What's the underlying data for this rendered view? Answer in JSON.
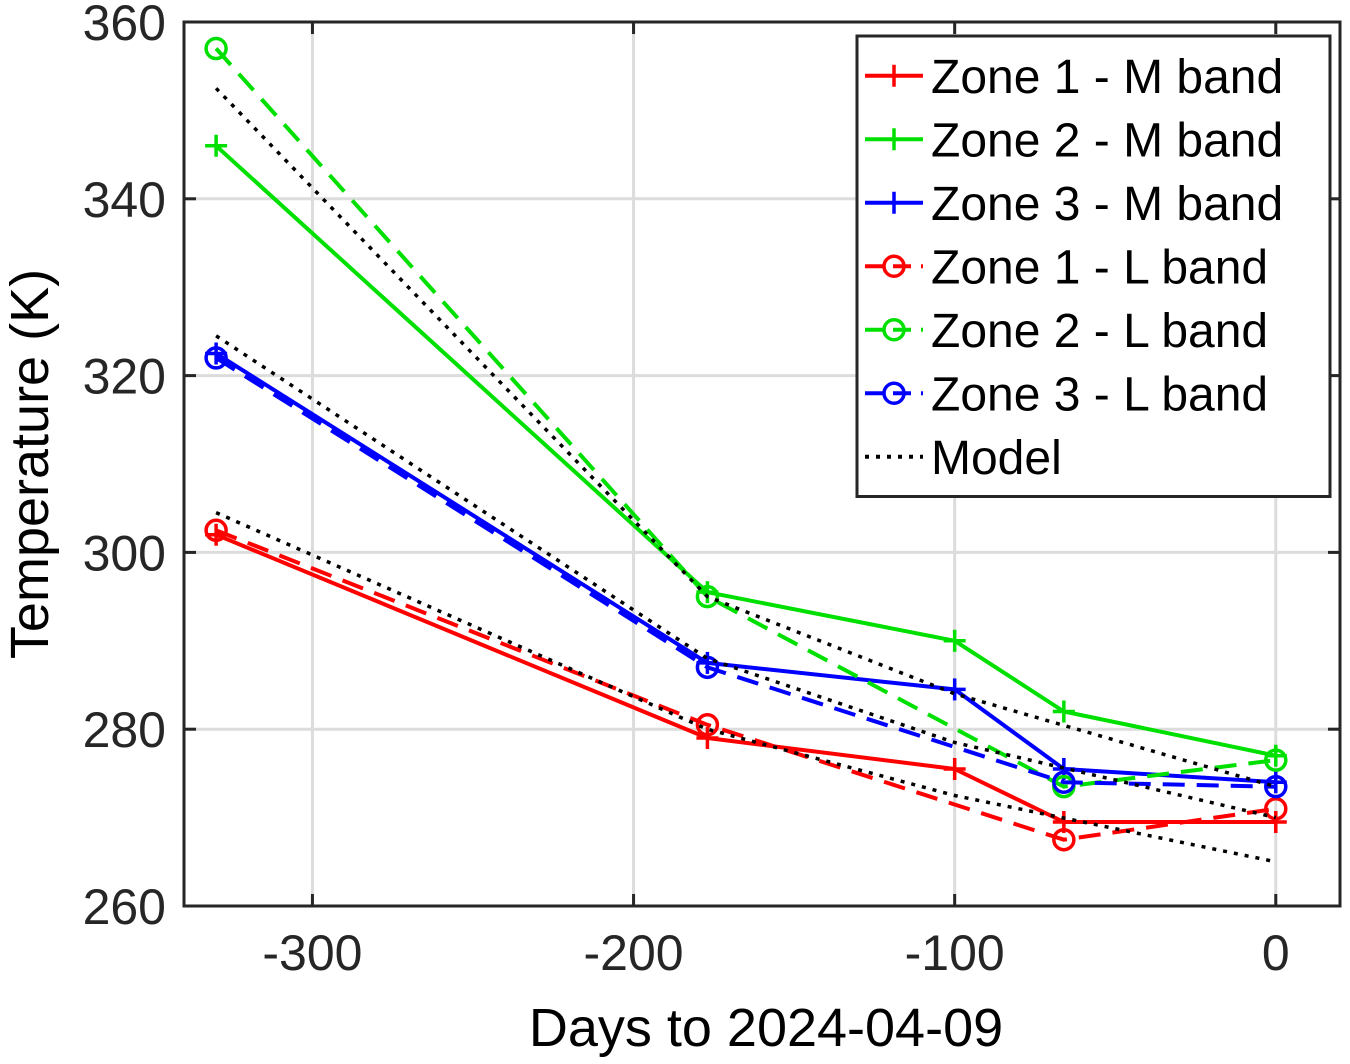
{
  "chart_data": {
    "type": "line",
    "title": "",
    "xlabel": "Days to 2024-04-09",
    "ylabel": "Temperature (K)",
    "xlim": [
      -340,
      20
    ],
    "ylim": [
      260,
      360
    ],
    "xticks": [
      -300,
      -200,
      -100,
      0
    ],
    "xtick_labels": [
      "-300",
      "-200",
      "-100",
      "0"
    ],
    "yticks": [
      260,
      280,
      300,
      320,
      340,
      360
    ],
    "ytick_labels": [
      "260",
      "280",
      "300",
      "320",
      "340",
      "360"
    ],
    "grid": true,
    "legend_position": "top-right",
    "series": [
      {
        "name": "Zone 1 - M band",
        "color": "#ff0000",
        "line": "solid",
        "marker": "plus",
        "x": [
          -330,
          -177,
          -100,
          -66,
          0
        ],
        "y": [
          302,
          279,
          275.5,
          269.5,
          269.5
        ]
      },
      {
        "name": "Zone 2 - M band",
        "color": "#00e000",
        "line": "solid",
        "marker": "plus",
        "x": [
          -330,
          -177,
          -100,
          -66,
          0
        ],
        "y": [
          346,
          295.5,
          290,
          282,
          277
        ]
      },
      {
        "name": "Zone 3 - M band",
        "color": "#0000ff",
        "line": "solid",
        "marker": "plus",
        "x": [
          -330,
          -177,
          -100,
          -66,
          0
        ],
        "y": [
          322.5,
          287.5,
          284.5,
          275.5,
          274
        ]
      },
      {
        "name": "Zone 1 - L band",
        "color": "#ff0000",
        "line": "dashed",
        "marker": "circle",
        "x": [
          -330,
          -177,
          -66,
          0
        ],
        "y": [
          302.5,
          280.5,
          267.5,
          271
        ]
      },
      {
        "name": "Zone 2 - L band",
        "color": "#00e000",
        "line": "dashed",
        "marker": "circle",
        "x": [
          -330,
          -177,
          -66,
          0
        ],
        "y": [
          357,
          295,
          273.5,
          276.5
        ]
      },
      {
        "name": "Zone 3 - L band",
        "color": "#0000ff",
        "line": "dashed",
        "marker": "circle",
        "x": [
          -330,
          -177,
          -66,
          0
        ],
        "y": [
          322,
          287,
          274,
          273.5
        ]
      },
      {
        "name": "Model",
        "color": "#000000",
        "line": "dotted",
        "marker": "none",
        "legend": true,
        "x": [
          -330,
          -177,
          -100,
          0
        ],
        "y": [
          304.5,
          280,
          272.5,
          265
        ]
      },
      {
        "name": "Model",
        "color": "#000000",
        "line": "dotted",
        "marker": "none",
        "legend": false,
        "x": [
          -330,
          -177,
          -100,
          0
        ],
        "y": [
          324.5,
          288,
          278.5,
          270
        ]
      },
      {
        "name": "Model",
        "color": "#000000",
        "line": "dotted",
        "marker": "none",
        "legend": false,
        "x": [
          -330,
          -177,
          -100,
          0
        ],
        "y": [
          352.5,
          295,
          284,
          273.5
        ]
      }
    ]
  }
}
